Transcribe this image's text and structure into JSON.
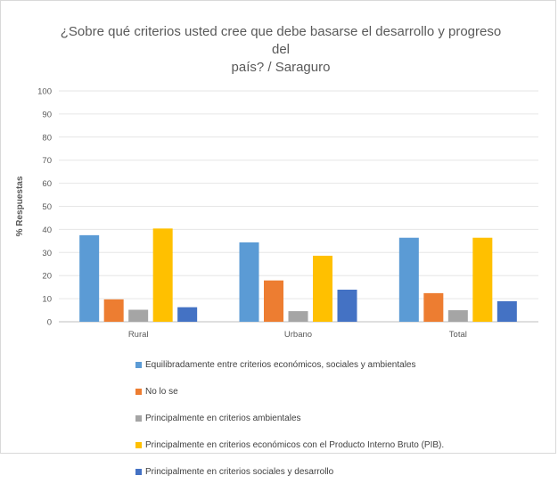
{
  "chart_data": {
    "type": "bar",
    "title_line1": "¿Sobre qué criterios usted cree que debe basarse el desarrollo y progreso del",
    "title_line2": "país? / Saraguro",
    "xlabel": "",
    "ylabel": "% Respuestas",
    "ylim": [
      0,
      100
    ],
    "yticks": [
      0,
      10,
      20,
      30,
      40,
      50,
      60,
      70,
      80,
      90,
      100
    ],
    "grid": true,
    "legend_position": "bottom",
    "categories": [
      "Rural",
      "Urbano",
      "Total"
    ],
    "series": [
      {
        "name": "Equilibradamente entre criterios económicos, sociales y ambientales",
        "color": "#5b9bd5",
        "values": [
          37.5,
          34.4,
          36.4
        ]
      },
      {
        "name": "No lo se",
        "color": "#ed7d31",
        "values": [
          9.7,
          17.9,
          12.4
        ]
      },
      {
        "name": "Principalmente en criterios ambientales",
        "color": "#a5a5a5",
        "values": [
          5.2,
          4.6,
          5.0
        ]
      },
      {
        "name": "Principalmente en criterios económicos con el Producto Interno Bruto (PIB).",
        "color": "#ffc000",
        "values": [
          40.4,
          28.6,
          36.4
        ]
      },
      {
        "name": "Principalmente en criterios sociales y desarrollo",
        "color": "#4472c4",
        "values": [
          6.3,
          13.9,
          8.9
        ]
      }
    ]
  }
}
